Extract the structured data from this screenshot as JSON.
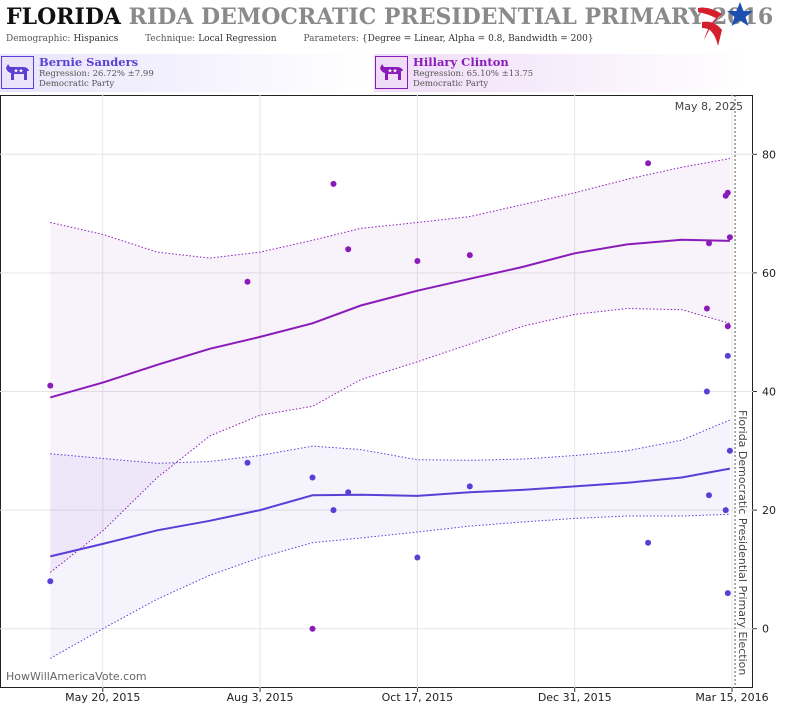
{
  "header": {
    "state_word": "FLORIDA",
    "title_rest": "RIDA DEMOCRATIC PRESIDENTIAL PRIMARY 2016",
    "params": [
      {
        "label": "Demographic:",
        "value": "Hispanics"
      },
      {
        "label": "Technique:",
        "value": "Local Regression"
      },
      {
        "label": "Parameters:",
        "value": "{Degree = Linear, Alpha = 0.8, Bandwidth = 200}"
      }
    ]
  },
  "logo": {
    "icon": "star-flag-logo",
    "colors": {
      "red": "#d4202c",
      "blue": "#1c4fb0"
    }
  },
  "candidates": [
    {
      "name": "Bernie Sanders",
      "regression": "Regression: 26.72% ±7.99",
      "party": "Democratic Party",
      "color": "#5a3fd6",
      "icon": "democrat-donkey-icon"
    },
    {
      "name": "Hillary Clinton",
      "regression": "Regression: 65.10% ±13.75",
      "party": "Democratic Party",
      "color": "#8a1bb8",
      "icon": "democrat-donkey-icon"
    }
  ],
  "chart_data": {
    "type": "scatter",
    "title": "",
    "watermark": "HowWillAmericaVote.com",
    "x_axis": {
      "type": "date",
      "range": [
        "2015-04-01",
        "2016-03-25"
      ],
      "ticks": [
        {
          "date": "2015-05-20",
          "label": "May 20, 2015"
        },
        {
          "date": "2015-08-03",
          "label": "Aug 3, 2015"
        },
        {
          "date": "2015-10-17",
          "label": "Oct 17, 2015"
        },
        {
          "date": "2015-12-31",
          "label": "Dec 31, 2015"
        },
        {
          "date": "2016-03-15",
          "label": "Mar 15, 2016"
        }
      ]
    },
    "y_axis": {
      "range": [
        -10,
        90
      ],
      "ticks": [
        0,
        20,
        40,
        60,
        80
      ],
      "position": "right",
      "grid": true
    },
    "today_label": "May 8, 2025",
    "election": {
      "date": "2016-03-15",
      "label": "Florida Democratic Presidential Primary Election"
    },
    "series": [
      {
        "name": "Hillary Clinton",
        "color": "#8a1bb8",
        "points": [
          {
            "x": "2015-04-25",
            "y": 41
          },
          {
            "x": "2015-07-28",
            "y": 58.5
          },
          {
            "x": "2015-08-28",
            "y": 0
          },
          {
            "x": "2015-09-07",
            "y": 75
          },
          {
            "x": "2015-09-14",
            "y": 64
          },
          {
            "x": "2015-10-17",
            "y": 62
          },
          {
            "x": "2015-11-11",
            "y": 63
          },
          {
            "x": "2016-02-04",
            "y": 78.5
          },
          {
            "x": "2016-03-03",
            "y": 54
          },
          {
            "x": "2016-03-04",
            "y": 65
          },
          {
            "x": "2016-03-12",
            "y": 73
          },
          {
            "x": "2016-03-13",
            "y": 73.5
          },
          {
            "x": "2016-03-13",
            "y": 51
          },
          {
            "x": "2016-03-14",
            "y": 66
          }
        ],
        "trend": [
          [
            "2015-04-25",
            39
          ],
          [
            "2015-05-20",
            41.5
          ],
          [
            "2015-06-15",
            44.5
          ],
          [
            "2015-07-10",
            47.2
          ],
          [
            "2015-08-03",
            49.2
          ],
          [
            "2015-08-28",
            51.5
          ],
          [
            "2015-09-20",
            54.5
          ],
          [
            "2015-10-17",
            57
          ],
          [
            "2015-11-11",
            59
          ],
          [
            "2015-12-06",
            61
          ],
          [
            "2015-12-31",
            63.3
          ],
          [
            "2016-01-25",
            64.8
          ],
          [
            "2016-02-20",
            65.6
          ],
          [
            "2016-03-14",
            65.4
          ]
        ],
        "upper": [
          [
            "2015-04-25",
            68.5
          ],
          [
            "2015-05-20",
            66.5
          ],
          [
            "2015-06-15",
            63.5
          ],
          [
            "2015-07-10",
            62.5
          ],
          [
            "2015-08-03",
            63.5
          ],
          [
            "2015-08-28",
            65.5
          ],
          [
            "2015-09-20",
            67.5
          ],
          [
            "2015-10-17",
            68.5
          ],
          [
            "2015-11-11",
            69.5
          ],
          [
            "2015-12-06",
            71.5
          ],
          [
            "2015-12-31",
            73.5
          ],
          [
            "2016-01-25",
            75.8
          ],
          [
            "2016-02-20",
            77.8
          ],
          [
            "2016-03-14",
            79.3
          ]
        ],
        "lower": [
          [
            "2015-04-25",
            9.5
          ],
          [
            "2015-05-20",
            16.5
          ],
          [
            "2015-06-15",
            25.5
          ],
          [
            "2015-07-10",
            32.5
          ],
          [
            "2015-08-03",
            36
          ],
          [
            "2015-08-28",
            37.5
          ],
          [
            "2015-09-20",
            42
          ],
          [
            "2015-10-17",
            45
          ],
          [
            "2015-11-11",
            48
          ],
          [
            "2015-12-06",
            51
          ],
          [
            "2015-12-31",
            53
          ],
          [
            "2016-01-25",
            54
          ],
          [
            "2016-02-20",
            53.8
          ],
          [
            "2016-03-14",
            51.5
          ]
        ]
      },
      {
        "name": "Bernie Sanders",
        "color": "#5a3fd6",
        "points": [
          {
            "x": "2015-04-25",
            "y": 8
          },
          {
            "x": "2015-07-28",
            "y": 28
          },
          {
            "x": "2015-08-28",
            "y": 25.5
          },
          {
            "x": "2015-09-07",
            "y": 20
          },
          {
            "x": "2015-09-14",
            "y": 23
          },
          {
            "x": "2015-10-17",
            "y": 12
          },
          {
            "x": "2015-11-11",
            "y": 24
          },
          {
            "x": "2016-02-04",
            "y": 14.5
          },
          {
            "x": "2016-03-03",
            "y": 40
          },
          {
            "x": "2016-03-04",
            "y": 22.5
          },
          {
            "x": "2016-03-12",
            "y": 20
          },
          {
            "x": "2016-03-13",
            "y": 46
          },
          {
            "x": "2016-03-13",
            "y": 6
          },
          {
            "x": "2016-03-14",
            "y": 30
          }
        ],
        "trend": [
          [
            "2015-04-25",
            12.2
          ],
          [
            "2015-05-20",
            14.3
          ],
          [
            "2015-06-15",
            16.6
          ],
          [
            "2015-07-10",
            18.2
          ],
          [
            "2015-08-03",
            20
          ],
          [
            "2015-08-28",
            22.5
          ],
          [
            "2015-09-20",
            22.6
          ],
          [
            "2015-10-17",
            22.4
          ],
          [
            "2015-11-11",
            23
          ],
          [
            "2015-12-06",
            23.4
          ],
          [
            "2015-12-31",
            24
          ],
          [
            "2016-01-25",
            24.6
          ],
          [
            "2016-02-20",
            25.5
          ],
          [
            "2016-03-14",
            27
          ]
        ],
        "upper": [
          [
            "2015-04-25",
            29.5
          ],
          [
            "2015-05-20",
            28.7
          ],
          [
            "2015-06-15",
            27.9
          ],
          [
            "2015-07-10",
            28.2
          ],
          [
            "2015-08-03",
            29.2
          ],
          [
            "2015-08-28",
            30.8
          ],
          [
            "2015-09-20",
            30.2
          ],
          [
            "2015-10-17",
            28.5
          ],
          [
            "2015-11-11",
            28.4
          ],
          [
            "2015-12-06",
            28.6
          ],
          [
            "2015-12-31",
            29.2
          ],
          [
            "2016-01-25",
            30
          ],
          [
            "2016-02-20",
            31.8
          ],
          [
            "2016-03-14",
            35.2
          ]
        ],
        "lower": [
          [
            "2015-04-25",
            -5
          ],
          [
            "2015-05-20",
            0
          ],
          [
            "2015-06-15",
            5
          ],
          [
            "2015-07-10",
            9
          ],
          [
            "2015-08-03",
            12
          ],
          [
            "2015-08-28",
            14.5
          ],
          [
            "2015-09-20",
            15.3
          ],
          [
            "2015-10-17",
            16.3
          ],
          [
            "2015-11-11",
            17.3
          ],
          [
            "2015-12-06",
            18
          ],
          [
            "2015-12-31",
            18.6
          ],
          [
            "2016-01-25",
            19
          ],
          [
            "2016-02-20",
            19
          ],
          [
            "2016-03-14",
            19.3
          ]
        ]
      }
    ]
  }
}
